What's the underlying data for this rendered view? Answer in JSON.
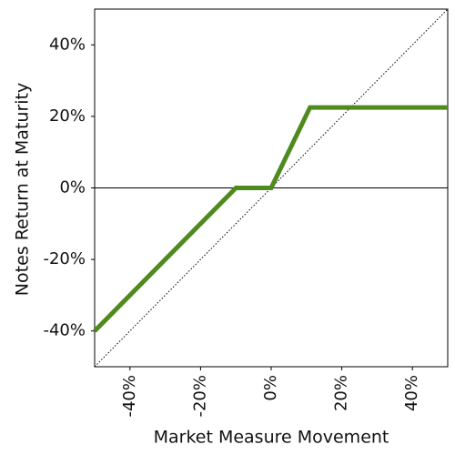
{
  "chart_data": {
    "type": "line",
    "xlabel": "Market Measure Movement",
    "ylabel": "Notes Return at Maturity",
    "xlim": [
      -50,
      50
    ],
    "ylim": [
      -50,
      50
    ],
    "xticks": [
      {
        "value": -40,
        "label": "-40%"
      },
      {
        "value": -20,
        "label": "-20%"
      },
      {
        "value": 0,
        "label": "0%"
      },
      {
        "value": 20,
        "label": "20%"
      },
      {
        "value": 40,
        "label": "40%"
      }
    ],
    "yticks": [
      {
        "value": -40,
        "label": "-40%"
      },
      {
        "value": -20,
        "label": "-20%"
      },
      {
        "value": 0,
        "label": "0%"
      },
      {
        "value": 20,
        "label": "20%"
      },
      {
        "value": 40,
        "label": "40%"
      }
    ],
    "zero_line": 0,
    "series": [
      {
        "x": [
          -50,
          -10,
          0,
          11,
          50
        ],
        "values": [
          -40,
          0,
          0,
          22.5,
          22.5
        ],
        "color": "#4f8a1f",
        "style": "solid"
      },
      {
        "x": [
          -50,
          50
        ],
        "values": [
          -50,
          50
        ],
        "color": "#000000",
        "style": "dotted"
      }
    ]
  }
}
